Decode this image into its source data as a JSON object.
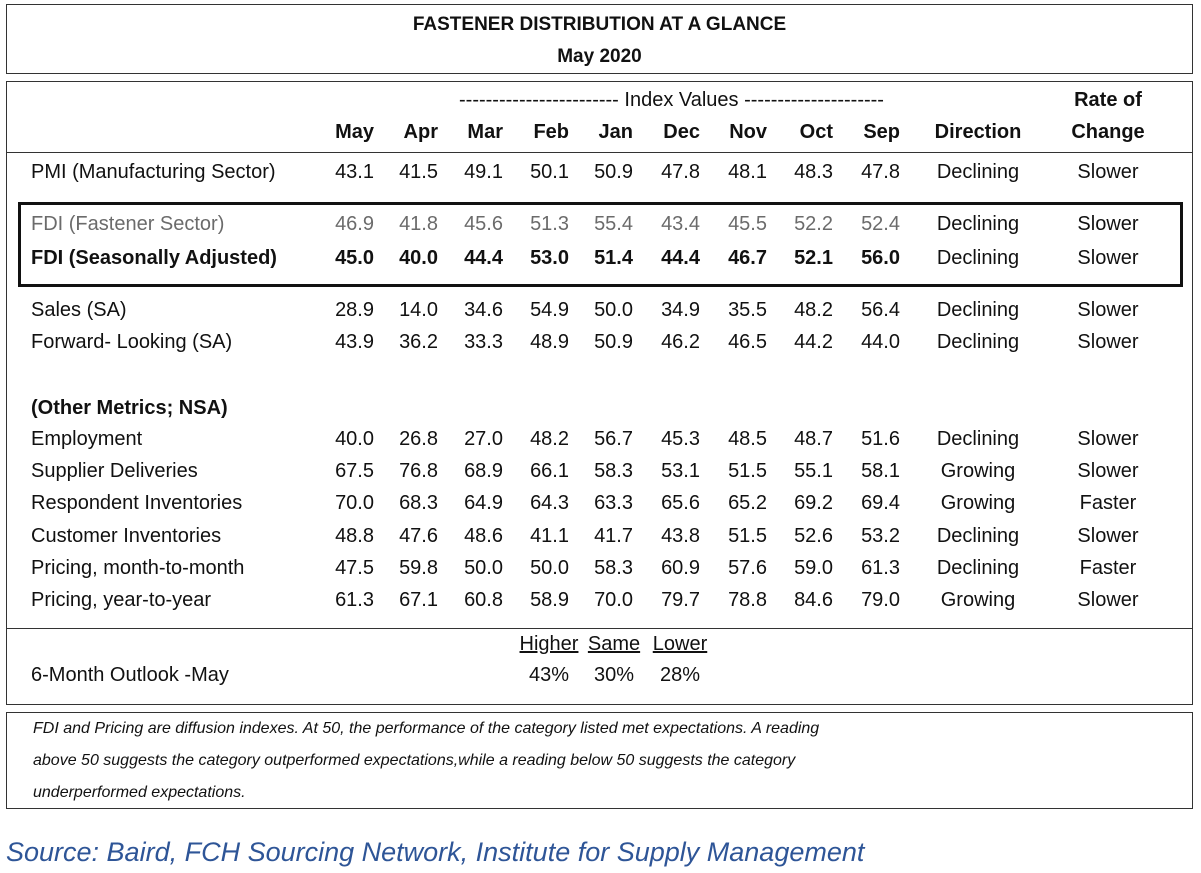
{
  "title": {
    "line1": "FASTENER DISTRIBUTION AT A GLANCE",
    "line2": "May 2020"
  },
  "header": {
    "group_label": "------------------------ Index Values ---------------------",
    "months": [
      "May",
      "Apr",
      "Mar",
      "Feb",
      "Jan",
      "Dec",
      "Nov",
      "Oct",
      "Sep"
    ],
    "direction": "Direction",
    "rate_line1": "Rate of",
    "rate_line2": "Change"
  },
  "rows": [
    {
      "label": "PMI (Manufacturing Sector)",
      "values": [
        "43.1",
        "41.5",
        "49.1",
        "50.1",
        "50.9",
        "47.8",
        "48.1",
        "48.3",
        "47.8"
      ],
      "direction": "Declining",
      "rate": "Slower"
    },
    {
      "label": "FDI (Fastener Sector)",
      "values": [
        "46.9",
        "41.8",
        "45.6",
        "51.3",
        "55.4",
        "43.4",
        "45.5",
        "52.2",
        "52.4"
      ],
      "direction": "Declining",
      "rate": "Slower"
    },
    {
      "label": "FDI (Seasonally Adjusted)",
      "values": [
        "45.0",
        "40.0",
        "44.4",
        "53.0",
        "51.4",
        "44.4",
        "46.7",
        "52.1",
        "56.0"
      ],
      "direction": "Declining",
      "rate": "Slower"
    },
    {
      "label": "Sales (SA)",
      "values": [
        "28.9",
        "14.0",
        "34.6",
        "54.9",
        "50.0",
        "34.9",
        "35.5",
        "48.2",
        "56.4"
      ],
      "direction": "Declining",
      "rate": "Slower"
    },
    {
      "label": "Forward- Looking (SA)",
      "values": [
        "43.9",
        "36.2",
        "33.3",
        "48.9",
        "50.9",
        "46.2",
        "46.5",
        "44.2",
        "44.0"
      ],
      "direction": "Declining",
      "rate": "Slower"
    },
    {
      "label": "Employment",
      "values": [
        "40.0",
        "26.8",
        "27.0",
        "48.2",
        "56.7",
        "45.3",
        "48.5",
        "48.7",
        "51.6"
      ],
      "direction": "Declining",
      "rate": "Slower"
    },
    {
      "label": "Supplier Deliveries",
      "values": [
        "67.5",
        "76.8",
        "68.9",
        "66.1",
        "58.3",
        "53.1",
        "51.5",
        "55.1",
        "58.1"
      ],
      "direction": "Growing",
      "rate": "Slower"
    },
    {
      "label": "Respondent Inventories",
      "values": [
        "70.0",
        "68.3",
        "64.9",
        "64.3",
        "63.3",
        "65.6",
        "65.2",
        "69.2",
        "69.4"
      ],
      "direction": "Growing",
      "rate": "Faster"
    },
    {
      "label": "Customer Inventories",
      "values": [
        "48.8",
        "47.6",
        "48.6",
        "41.1",
        "41.7",
        "43.8",
        "51.5",
        "52.6",
        "53.2"
      ],
      "direction": "Declining",
      "rate": "Slower"
    },
    {
      "label": "Pricing, month-to-month",
      "values": [
        "47.5",
        "59.8",
        "50.0",
        "50.0",
        "58.3",
        "60.9",
        "57.6",
        "59.0",
        "61.3"
      ],
      "direction": "Declining",
      "rate": "Faster"
    },
    {
      "label": "Pricing, year-to-year",
      "values": [
        "61.3",
        "67.1",
        "60.8",
        "58.9",
        "70.0",
        "79.7",
        "78.8",
        "84.6",
        "79.0"
      ],
      "direction": "Growing",
      "rate": "Slower"
    }
  ],
  "section_label": "(Other Metrics; NSA)",
  "outlook": {
    "label": "6-Month Outlook -May",
    "headers": [
      "Higher",
      "Same",
      "Lower"
    ],
    "values": [
      "43%",
      "30%",
      "28%"
    ]
  },
  "footnote": {
    "line1": "FDI and Pricing are diffusion indexes.  At 50, the performance of the category listed met expectations. A reading",
    "line2": "above 50 suggests the category outperformed expectations,while a reading below 50 suggests the category",
    "line3": "underperformed expectations."
  },
  "source": "Source: Baird, FCH Sourcing Network, Institute for Supply Management"
}
